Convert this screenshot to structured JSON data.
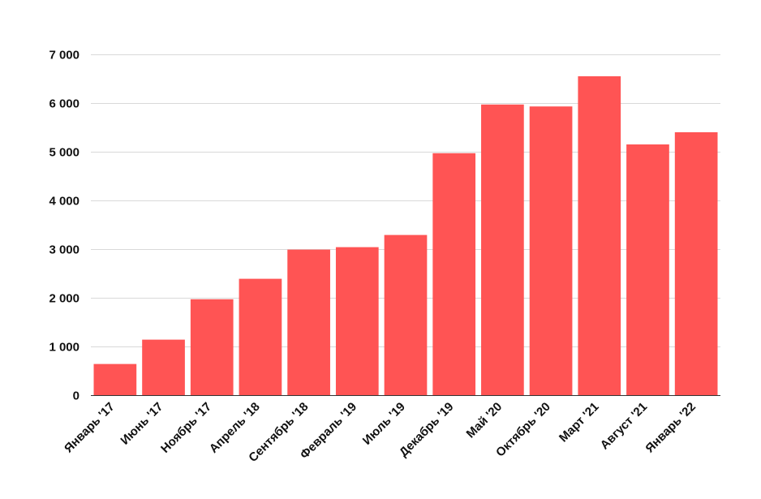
{
  "chart_data": {
    "type": "bar",
    "title": "",
    "xlabel": "",
    "ylabel": "",
    "categories": [
      "Январь '17",
      "Июнь '17",
      "Ноябрь '17",
      "Апрель '18",
      "Сентябрь '18",
      "Февраль '19",
      "Июль '19",
      "Декабрь '19",
      "Май '20",
      "Октябрь '20",
      "Март '21",
      "Август '21",
      "Январь '22"
    ],
    "values": [
      640,
      1140,
      1970,
      2390,
      2990,
      3040,
      3290,
      4970,
      5970,
      5930,
      6550,
      5150,
      5400
    ],
    "ylim": [
      0,
      7000
    ],
    "yticks": [
      0,
      1000,
      2000,
      3000,
      4000,
      5000,
      6000,
      7000
    ],
    "ytick_labels": [
      "0",
      "1 000",
      "2 000",
      "3 000",
      "4 000",
      "5 000",
      "6 000",
      "7 000"
    ],
    "grid": true,
    "legend": "none",
    "bar_color": "#ff5454"
  }
}
